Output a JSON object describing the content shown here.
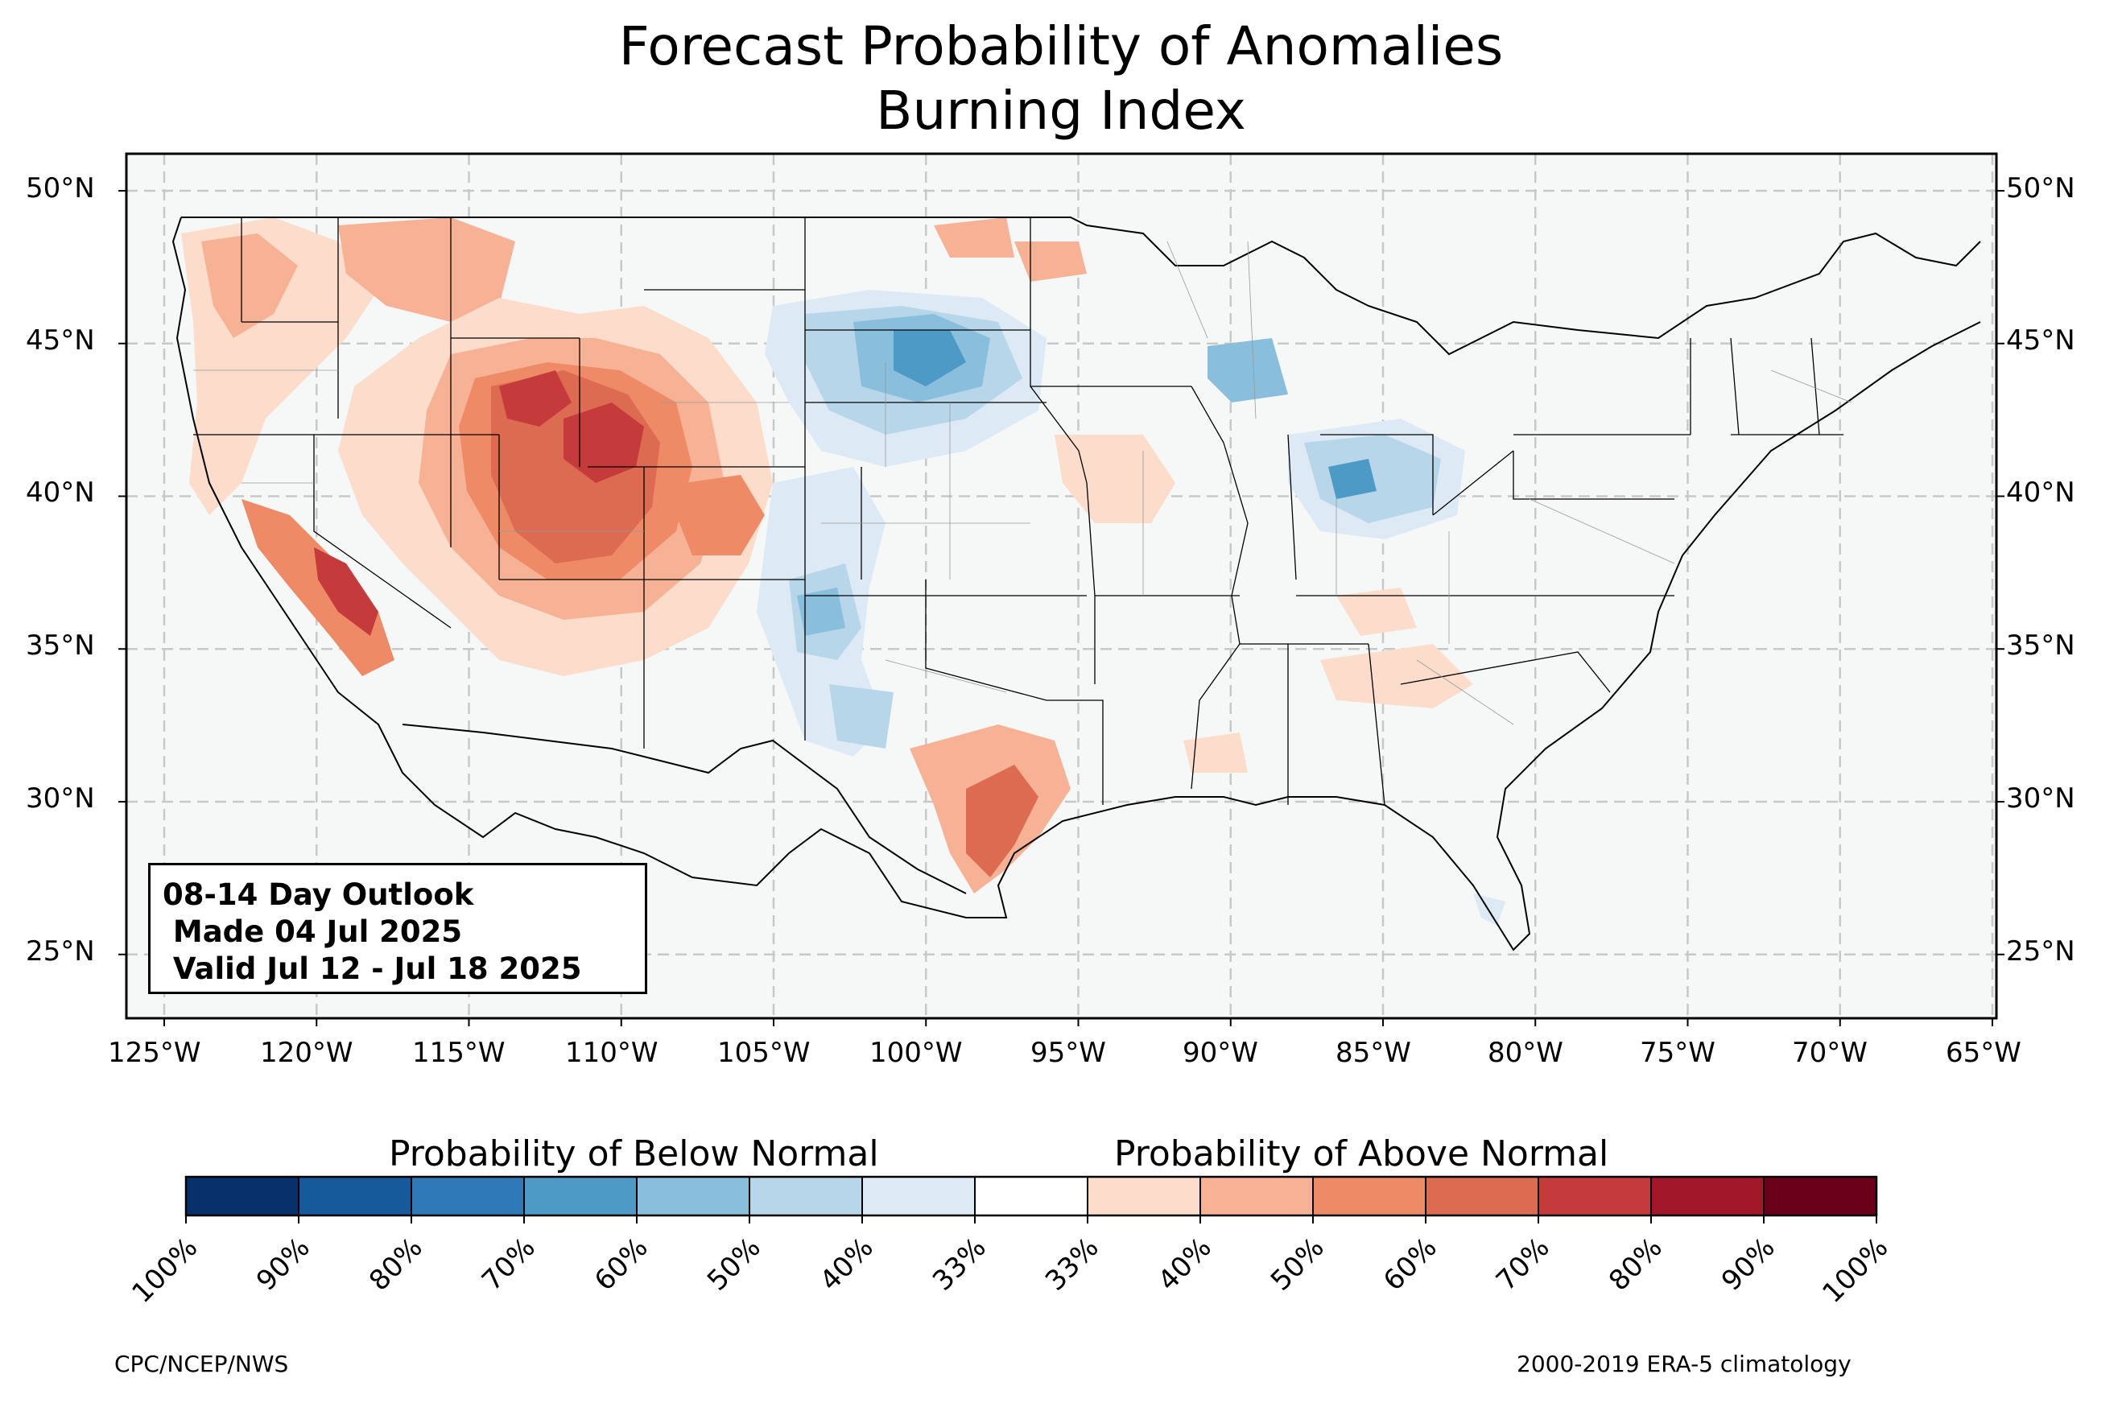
{
  "title": {
    "line1": "Forecast Probability of Anomalies",
    "line2": "Burning Index"
  },
  "map": {
    "lat_labels": [
      "50°N",
      "45°N",
      "40°N",
      "35°N",
      "30°N",
      "25°N"
    ],
    "lon_labels": [
      "125°W",
      "120°W",
      "115°W",
      "110°W",
      "105°W",
      "100°W",
      "95°W",
      "90°W",
      "85°W",
      "80°W",
      "75°W",
      "70°W",
      "65°W"
    ],
    "colors": {
      "land": "#f6f7f7",
      "border": "#000000",
      "county": "#999999",
      "grid": "#cccccc"
    },
    "anomaly_regions": [
      {
        "name": "pacific-northwest",
        "category": "above",
        "level": "33-50%"
      },
      {
        "name": "northern-rockies",
        "category": "above",
        "level": "40-60%"
      },
      {
        "name": "great-basin-four-corners",
        "category": "above",
        "level": "50-80%"
      },
      {
        "name": "california-sierra",
        "category": "above",
        "level": "60-80%"
      },
      {
        "name": "south-texas",
        "category": "above",
        "level": "50-70%"
      },
      {
        "name": "northern-plains",
        "category": "below",
        "level": "40-70%"
      },
      {
        "name": "southern-plains",
        "category": "below",
        "level": "33-60%"
      },
      {
        "name": "ohio-valley",
        "category": "below",
        "level": "40-70%"
      },
      {
        "name": "upper-midwest",
        "category": "below",
        "level": "40-60%"
      }
    ]
  },
  "outlook": {
    "line1": "08-14 Day Outlook",
    "line2": " Made 04 Jul 2025",
    "line3": " Valid Jul 12 - Jul 18 2025"
  },
  "colorbar": {
    "below_label": "Probability of Below Normal",
    "above_label": "Probability of Above Normal",
    "colors": [
      "#08306b",
      "#175a9c",
      "#2e7ab9",
      "#4e9ac6",
      "#89bedc",
      "#b8d6e9",
      "#ddeaf5",
      "#ffffff",
      "#fcdccb",
      "#f7b194",
      "#ef8a67",
      "#dc6b52",
      "#c53b3b",
      "#a2172a",
      "#6a0019"
    ],
    "ticks": [
      "100%",
      "90%",
      "80%",
      "70%",
      "60%",
      "50%",
      "40%",
      "33%",
      "33%",
      "40%",
      "50%",
      "60%",
      "70%",
      "80%",
      "90%",
      "100%"
    ]
  },
  "footer": {
    "left": "CPC/NCEP/NWS",
    "right": "2000-2019 ERA-5 climatology"
  }
}
